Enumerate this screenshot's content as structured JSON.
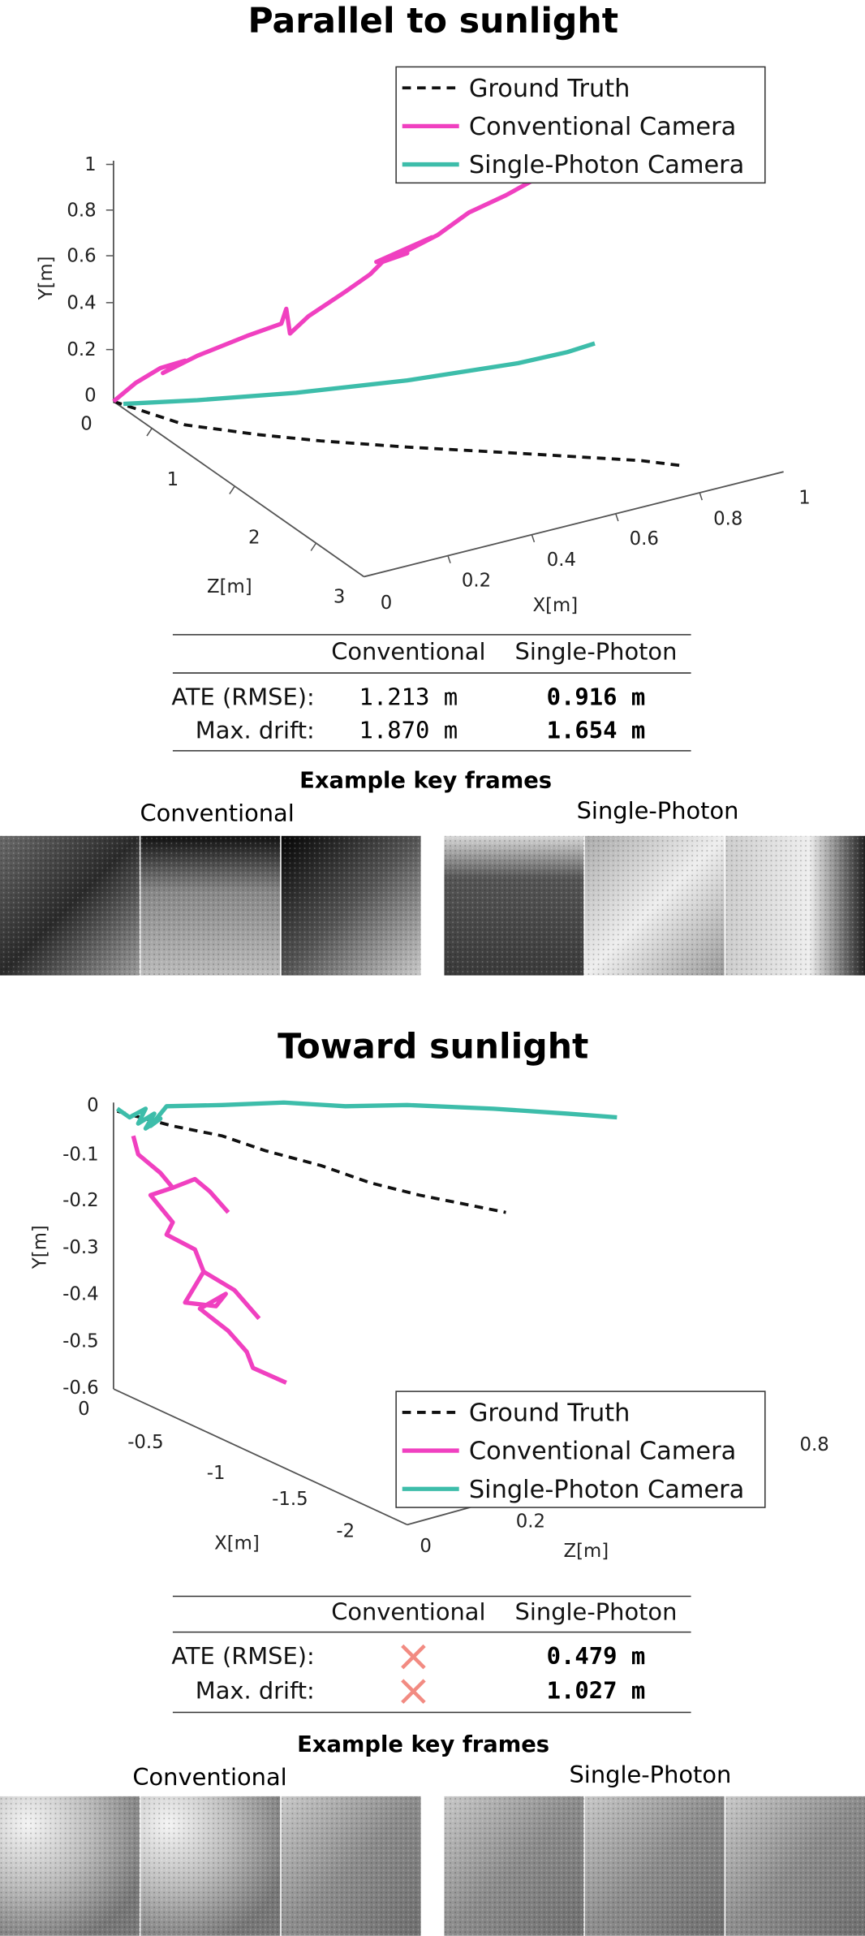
{
  "panels": [
    {
      "title": "Parallel to sunlight",
      "legend": [
        "Ground Truth",
        "Conventional Camera",
        "Single-Photon Camera"
      ],
      "axes": {
        "y_label": "Y[m]",
        "y_ticks": [
          "1",
          "0.8",
          "0.6",
          "0.4",
          "0.2",
          "0"
        ],
        "z_label": "Z[m]",
        "z_ticks": [
          "0",
          "1",
          "2",
          "3"
        ],
        "x_label": "X[m]",
        "x_ticks": [
          "0",
          "0.2",
          "0.4",
          "0.6",
          "0.8",
          "1"
        ]
      },
      "table": {
        "header": [
          "Conventional",
          "Single-Photon"
        ],
        "rows": [
          {
            "label": "ATE (RMSE):",
            "conventional": "1.213 m",
            "single_photon": "0.916 m"
          },
          {
            "label": "Max. drift:",
            "conventional": "1.870 m",
            "single_photon": "1.654 m"
          }
        ]
      },
      "key_frames": {
        "title": "Example key frames",
        "left": "Conventional",
        "right": "Single-Photon"
      }
    },
    {
      "title": "Toward sunlight",
      "legend": [
        "Ground Truth",
        "Conventional Camera",
        "Single-Photon Camera"
      ],
      "axes": {
        "y_label": "Y[m]",
        "y_ticks": [
          "0",
          "-0.1",
          "-0.2",
          "-0.3",
          "-0.4",
          "-0.5",
          "-0.6"
        ],
        "x_label": "X[m]",
        "x_ticks": [
          "0",
          "-0.5",
          "-1",
          "-1.5",
          "-2"
        ],
        "z_label": "Z[m]",
        "z_ticks": [
          "0",
          "0.2",
          "0.8"
        ]
      },
      "table": {
        "header": [
          "Conventional",
          "Single-Photon"
        ],
        "rows": [
          {
            "label": "ATE (RMSE):",
            "single_photon": "0.479 m"
          },
          {
            "label": "Max. drift:",
            "single_photon": "1.027 m"
          }
        ]
      },
      "key_frames": {
        "title": "Example key frames",
        "left": "Conventional",
        "right": "Single-Photon"
      }
    }
  ]
}
